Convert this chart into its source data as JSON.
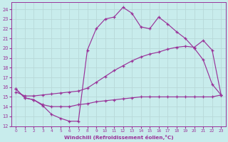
{
  "bg_color": "#c8ecec",
  "grid_color": "#b8d8d8",
  "line_color": "#993399",
  "xlabel": "Windchill (Refroidissement éolien,°C)",
  "xlim": [
    -0.5,
    23.5
  ],
  "ylim": [
    12,
    24.7
  ],
  "yticks": [
    12,
    13,
    14,
    15,
    16,
    17,
    18,
    19,
    20,
    21,
    22,
    23,
    24
  ],
  "xticks": [
    0,
    1,
    2,
    3,
    4,
    5,
    6,
    7,
    8,
    9,
    10,
    11,
    12,
    13,
    14,
    15,
    16,
    17,
    18,
    19,
    20,
    21,
    22,
    23
  ],
  "line1_x": [
    0,
    1,
    2,
    3,
    4,
    5,
    6,
    7,
    8,
    9,
    10,
    11,
    12,
    13,
    14,
    15,
    16,
    17,
    18,
    19,
    20,
    21,
    22,
    23
  ],
  "line1_y": [
    15.8,
    14.9,
    14.7,
    14.1,
    13.2,
    12.8,
    12.5,
    12.5,
    19.8,
    22.0,
    23.0,
    23.2,
    24.2,
    23.6,
    22.2,
    22.0,
    23.2,
    22.5,
    21.7,
    21.0,
    20.0,
    18.8,
    16.3,
    15.2
  ],
  "line2_x": [
    0,
    1,
    2,
    3,
    4,
    5,
    6,
    7,
    8,
    9,
    10,
    11,
    12,
    13,
    14,
    15,
    16,
    17,
    18,
    19,
    20,
    21,
    22,
    23
  ],
  "line2_y": [
    15.5,
    15.1,
    15.1,
    15.2,
    15.3,
    15.4,
    15.5,
    15.6,
    15.9,
    16.5,
    17.1,
    17.7,
    18.2,
    18.7,
    19.1,
    19.4,
    19.6,
    19.9,
    20.1,
    20.2,
    20.1,
    20.8,
    19.8,
    15.2
  ],
  "line3_x": [
    0,
    1,
    2,
    3,
    4,
    5,
    6,
    7,
    8,
    9,
    10,
    11,
    12,
    13,
    14,
    15,
    16,
    17,
    18,
    19,
    20,
    21,
    22,
    23
  ],
  "line3_y": [
    15.8,
    14.9,
    14.7,
    14.2,
    14.0,
    14.0,
    14.0,
    14.2,
    14.3,
    14.5,
    14.6,
    14.7,
    14.8,
    14.9,
    15.0,
    15.0,
    15.0,
    15.0,
    15.0,
    15.0,
    15.0,
    15.0,
    15.0,
    15.2
  ]
}
